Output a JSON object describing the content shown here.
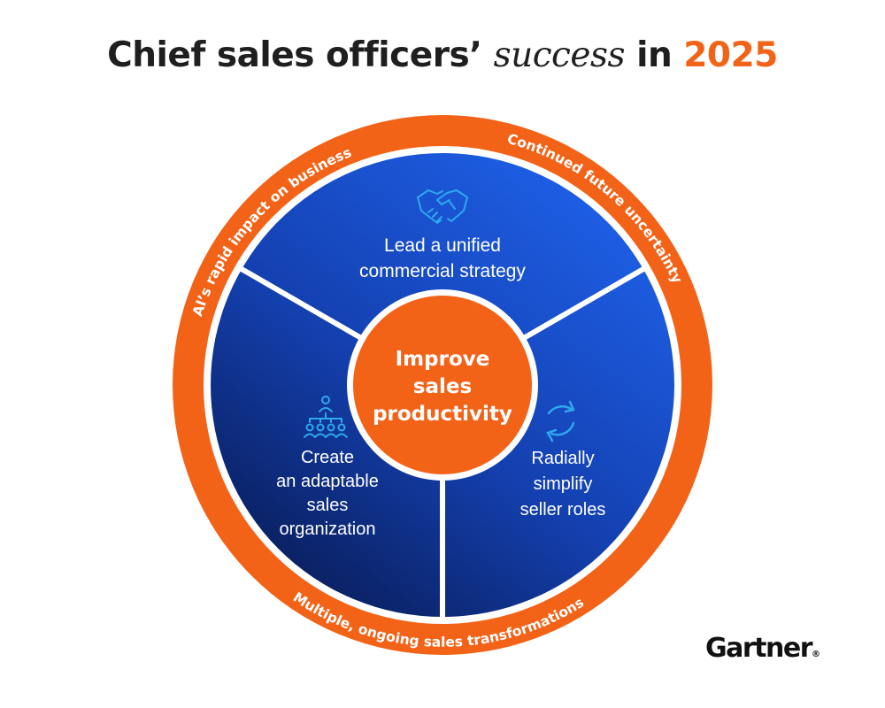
{
  "title": {
    "part1": "Chief sales officers’",
    "emphasis": "success",
    "part2": "in",
    "year": "2025"
  },
  "ring_labels": {
    "left_top": "AI’s rapid impact on business",
    "right_top": "Continued future uncertainty",
    "bottom": "Multiple, ongoing sales transformations"
  },
  "center": {
    "lines": [
      "Improve",
      "sales",
      "productivity"
    ]
  },
  "segments": {
    "top": {
      "icon": "handshake-icon",
      "lines": [
        "Lead a unified",
        "commercial strategy"
      ]
    },
    "left": {
      "icon": "org-chart-icon",
      "lines": [
        "Create",
        "an adaptable",
        "sales",
        "organization"
      ]
    },
    "right": {
      "icon": "refresh-cycle-icon",
      "lines": [
        "Radially",
        "simplify",
        "seller roles"
      ]
    }
  },
  "brand": {
    "name": "Gartner",
    "mark": "®"
  },
  "colors": {
    "accent_orange": "#f26318",
    "segment_blue_light": "#1e5fe6",
    "segment_blue_dark": "#0a1f5e",
    "icon_blue": "#2fa8ef"
  }
}
